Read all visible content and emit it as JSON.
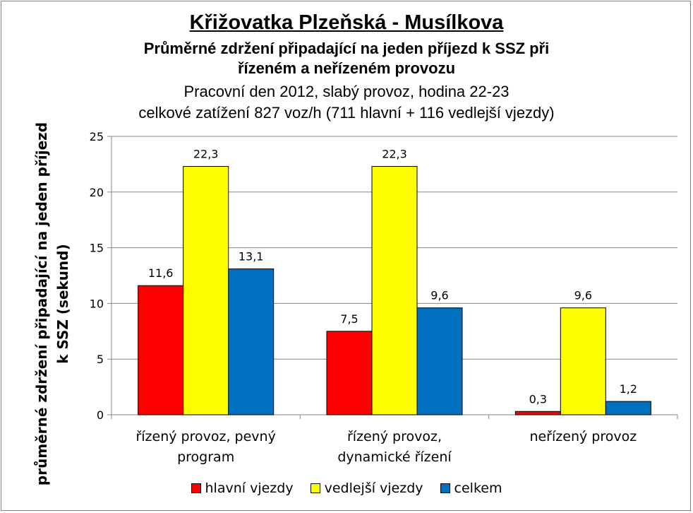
{
  "title": {
    "line1": "Křižovatka Plzeňská  - Musílkova",
    "line2": "Průměrné zdržení připadající na jeden příjezd k SSZ při",
    "line3": "řízeném a neřízeném provozu",
    "line4": "Pracovní den 2012, slabý provoz, hodina 22-23",
    "line5": "celkové zatížení  827 voz/h  (711 hlavní  + 116 vedlejší vjezdy)"
  },
  "chart_data": {
    "type": "bar",
    "categories": [
      [
        "řízený provoz, pevný",
        "program"
      ],
      [
        "řízený provoz,",
        "dynamické řízení"
      ],
      [
        "neřízený provoz"
      ]
    ],
    "series": [
      {
        "name": "hlavní vjezdy",
        "color": "#ff0000",
        "values": [
          11.6,
          7.5,
          0.3
        ],
        "labels": [
          "11,6",
          "7,5",
          "0,3"
        ]
      },
      {
        "name": "vedlejší vjezdy",
        "color": "#ffff00",
        "values": [
          22.3,
          22.3,
          9.6
        ],
        "labels": [
          "22,3",
          "22,3",
          "9,6"
        ]
      },
      {
        "name": "celkem",
        "color": "#0070c0",
        "values": [
          13.1,
          9.6,
          1.2
        ],
        "labels": [
          "13,1",
          "9,6",
          "1,2"
        ]
      }
    ],
    "ylabel_lines": [
      "průměrné zdržení připadající na jeden příjezd",
      "k SSZ (sekund)"
    ],
    "ylim": [
      0,
      25
    ],
    "yticks": [
      0,
      5,
      10,
      15,
      20,
      25
    ],
    "grid": true,
    "legend": "bottom"
  }
}
